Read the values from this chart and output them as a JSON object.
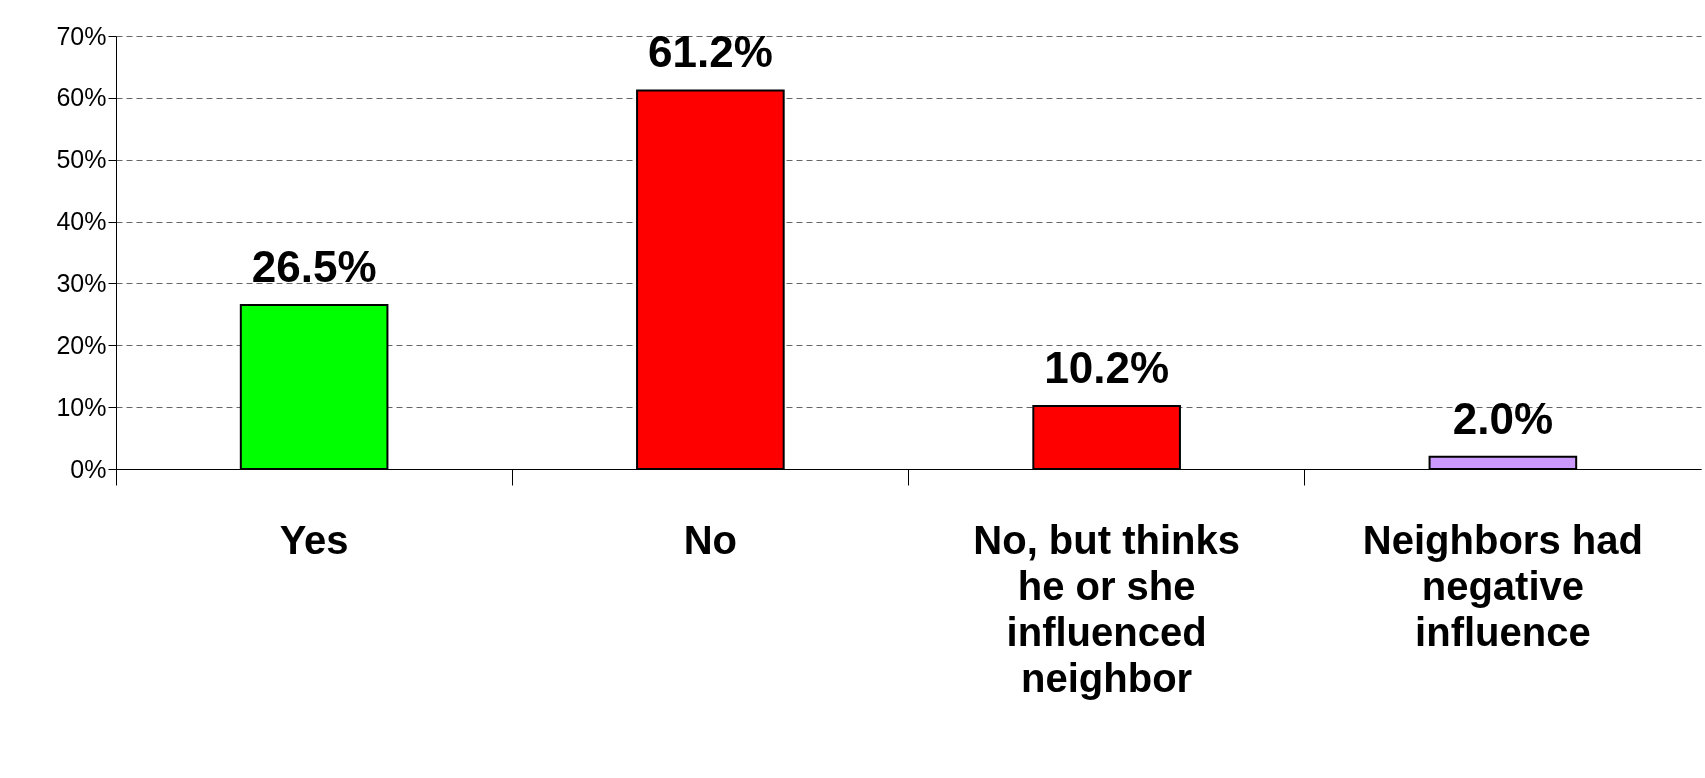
{
  "chart_data": {
    "type": "bar",
    "categories": [
      "Yes",
      "No",
      "No, but thinks he or she influenced neighbor",
      "Neighbors had negative influence"
    ],
    "values": [
      26.5,
      61.2,
      10.2,
      2.0
    ],
    "colors": [
      "#00ff00",
      "#ff0000",
      "#ff0000",
      "#cc99ff"
    ],
    "value_labels": [
      "26.5%",
      "61.2%",
      "10.2%",
      "2.0%"
    ],
    "ylim": [
      0,
      70
    ],
    "yticks": [
      {
        "value": 0,
        "label": "0%"
      },
      {
        "value": 10,
        "label": "10%"
      },
      {
        "value": 20,
        "label": "20%"
      },
      {
        "value": 30,
        "label": "30%"
      },
      {
        "value": 40,
        "label": "40%"
      },
      {
        "value": 50,
        "label": "50%"
      },
      {
        "value": 60,
        "label": "60%"
      },
      {
        "value": 70,
        "label": "70%"
      }
    ],
    "grid": "y"
  }
}
